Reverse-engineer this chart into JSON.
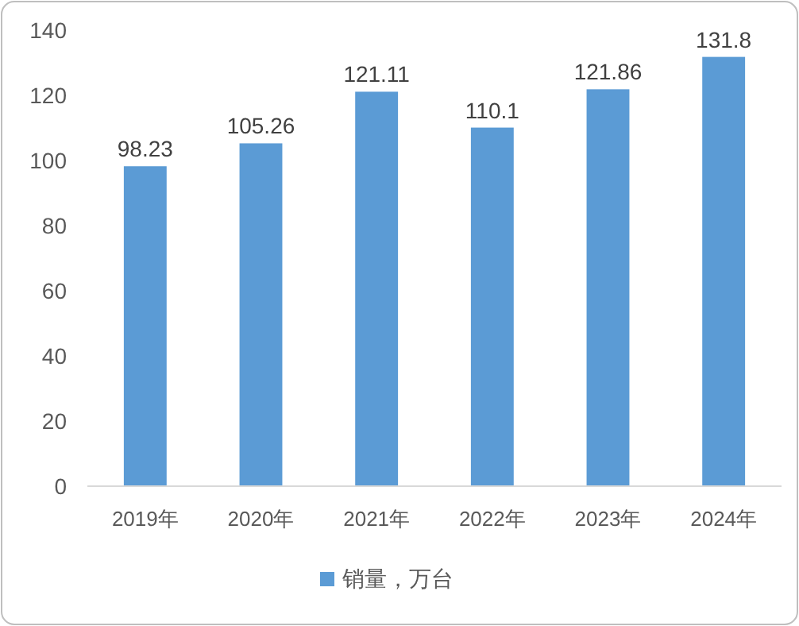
{
  "chart_data": {
    "type": "bar",
    "categories": [
      "2019年",
      "2020年",
      "2021年",
      "2022年",
      "2023年",
      "2024年"
    ],
    "series": [
      {
        "name": "销量，万台",
        "color": "#5b9bd5",
        "values": [
          98.23,
          105.26,
          121.11,
          110.1,
          121.86,
          131.8
        ]
      }
    ],
    "ylim": [
      0,
      140
    ],
    "yticks": [
      0,
      20,
      40,
      60,
      80,
      100,
      120,
      140
    ],
    "data_labels": true,
    "grid": false,
    "legend": "bottom"
  }
}
